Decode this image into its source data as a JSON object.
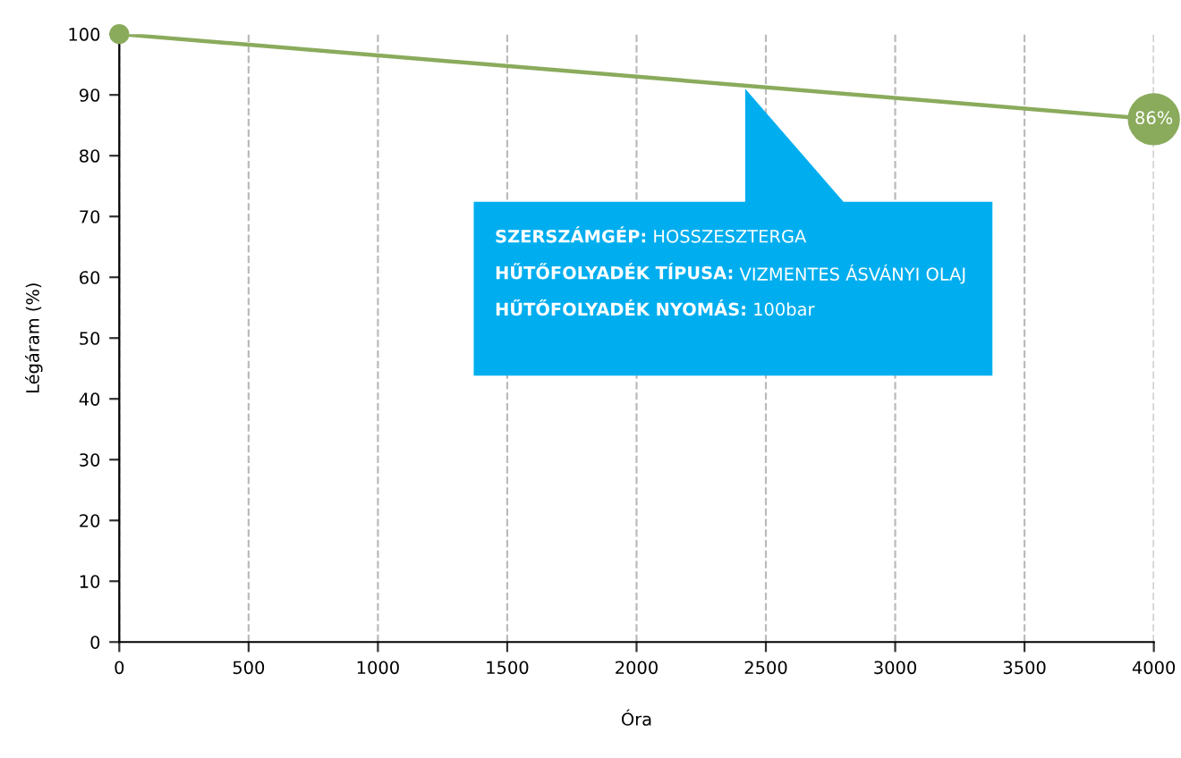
{
  "chart_data": {
    "type": "line",
    "xlabel": "Óra",
    "ylabel": "Légáram (%)",
    "x": [
      0,
      4000
    ],
    "series": [
      {
        "color": "#8aab5c",
        "values": [
          100,
          86
        ],
        "value_labels": [
          null,
          "86%"
        ]
      }
    ],
    "xlim": [
      0,
      4000
    ],
    "xticks": [
      0,
      500,
      1000,
      1500,
      2000,
      2500,
      3000,
      3500,
      4000
    ],
    "ylim": [
      0,
      100
    ],
    "yticks": [
      0,
      10,
      20,
      30,
      40,
      50,
      60,
      70,
      80,
      90,
      100
    ],
    "grid": "x",
    "marker": "circle",
    "line_style": "solid",
    "annotations": [
      "SZERSZÁMGÉP: HOSSZESZTERGA",
      "HŰTŐFOLYADÉK TÍPUSA: VIZMENTES ÁSVÁNYI OLAJ",
      "HŰTŐFOLYADÉK NYOMÁS: 100bar"
    ]
  }
}
